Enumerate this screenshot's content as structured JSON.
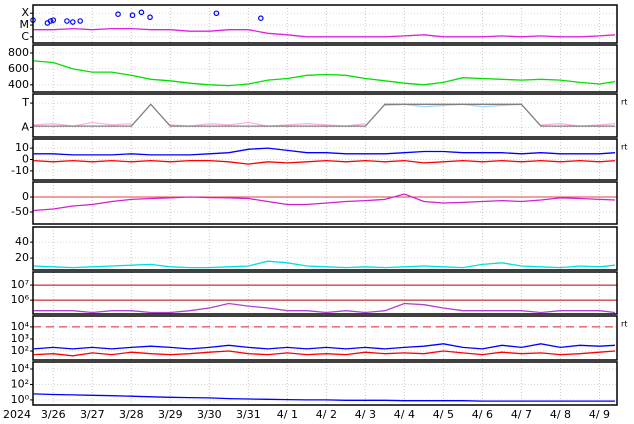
{
  "chart_data": [
    {
      "type": "line",
      "log": true,
      "ylim": [
        3e-07,
        0.0005
      ],
      "yticks": [
        {
          "value": 0.0001,
          "label": "X"
        },
        {
          "value": 1e-05,
          "label": "M"
        },
        {
          "value": 1e-06,
          "label": "C"
        }
      ],
      "x": [
        0.5,
        1,
        1.5,
        2,
        2.5,
        3,
        3.5,
        4,
        4.5,
        5,
        5.5,
        6,
        6.5,
        7,
        7.5,
        8,
        8.5,
        9,
        9.5,
        10,
        10.5,
        11,
        11.5,
        12,
        12.5,
        13,
        13.5,
        14,
        14.5,
        15,
        15.4
      ],
      "series": [
        {
          "color": "#e020e0",
          "values": [
            4e-06,
            4e-06,
            5e-06,
            4e-06,
            5e-06,
            5e-06,
            4e-06,
            4e-06,
            3e-06,
            3e-06,
            4e-06,
            4e-06,
            2e-06,
            1.5e-06,
            1e-06,
            1e-06,
            1e-06,
            1e-06,
            1e-06,
            1.2e-06,
            1.5e-06,
            1e-06,
            1e-06,
            1e-06,
            1.2e-06,
            1e-06,
            1.2e-06,
            1e-06,
            1e-06,
            1.2e-06,
            1.5e-06
          ]
        },
        {
          "type": "scatter",
          "color": "#0000ff",
          "x": [
            0.48,
            0.85,
            0.93,
            1.0,
            1.35,
            1.5,
            1.69,
            2.66,
            3.03,
            3.26,
            3.48,
            5.18,
            6.32
          ],
          "values": [
            2.6e-05,
            1.5e-05,
            2.2e-05,
            2.6e-05,
            2.2e-05,
            1.8e-05,
            2.2e-05,
            8.3e-05,
            6.8e-05,
            0.00012,
            4.6e-05,
            0.0001,
            3.8e-05
          ]
        }
      ]
    },
    {
      "type": "line",
      "ylim": [
        310,
        900
      ],
      "yticks": [
        800,
        600,
        400
      ],
      "x": [
        0.5,
        1,
        1.5,
        2,
        2.5,
        3,
        3.5,
        4,
        4.5,
        5,
        5.5,
        6,
        6.5,
        7,
        7.5,
        8,
        8.5,
        9,
        9.5,
        10,
        10.5,
        11,
        11.5,
        12,
        12.5,
        13,
        13.5,
        14,
        14.5,
        15,
        15.4
      ],
      "series": [
        {
          "color": "#00e000",
          "values": [
            700,
            680,
            600,
            560,
            560,
            520,
            470,
            450,
            420,
            400,
            390,
            410,
            460,
            480,
            520,
            530,
            520,
            480,
            450,
            420,
            400,
            430,
            490,
            480,
            470,
            460,
            470,
            460,
            430,
            410,
            440
          ]
        }
      ]
    },
    {
      "type": "line",
      "ylim": [
        -1.8,
        1.75
      ],
      "flag": "rt",
      "yticks": [
        {
          "value": 1,
          "label": "T"
        },
        {
          "value": -1,
          "label": "A"
        }
      ],
      "x": [
        0.5,
        1,
        1.5,
        2,
        2.5,
        3,
        3.5,
        4,
        4.5,
        5,
        5.5,
        6,
        6.5,
        7,
        7.5,
        8,
        8.5,
        9,
        9.5,
        10,
        10.5,
        11,
        11.5,
        12,
        12.5,
        13,
        13.5,
        14,
        14.5,
        15,
        15.4
      ],
      "series": [
        {
          "color": "#ffb0e8",
          "values": [
            -0.8,
            -0.7,
            -0.9,
            -0.6,
            -0.8,
            -0.7,
            null,
            -0.8,
            -0.9,
            -0.7,
            -0.8,
            -0.6,
            -0.9,
            -0.8,
            -0.7,
            -0.8,
            -0.9,
            -0.7,
            null,
            null,
            null,
            null,
            null,
            null,
            null,
            null,
            -0.8,
            -0.7,
            -0.9,
            -0.8,
            -0.7
          ]
        },
        {
          "color": "#a0d8ff",
          "values": [
            null,
            null,
            null,
            null,
            null,
            null,
            0.8,
            null,
            null,
            null,
            null,
            null,
            null,
            null,
            null,
            null,
            null,
            null,
            0.8,
            0.9,
            0.7,
            0.8,
            0.9,
            0.7,
            0.8,
            0.9,
            null,
            null,
            null,
            null,
            null
          ]
        },
        {
          "color": "#808080",
          "values": [
            -0.9,
            -0.9,
            -0.9,
            -0.9,
            -0.9,
            -0.9,
            0.9,
            -0.9,
            -0.9,
            -0.9,
            -0.9,
            -0.9,
            -0.9,
            -0.9,
            -0.9,
            -0.9,
            -0.9,
            -0.9,
            0.9,
            0.9,
            0.9,
            0.9,
            0.9,
            0.9,
            0.9,
            0.9,
            -0.9,
            -0.9,
            -0.9,
            -0.9,
            -0.9
          ]
        }
      ]
    },
    {
      "type": "line",
      "ylim": [
        -18,
        18
      ],
      "yticks": [
        10,
        0,
        -10
      ],
      "flag": "rt",
      "x": [
        0.5,
        1,
        1.5,
        2,
        2.5,
        3,
        3.5,
        4,
        4.5,
        5,
        5.5,
        6,
        6.5,
        7,
        7.5,
        8,
        8.5,
        9,
        9.5,
        10,
        10.5,
        11,
        11.5,
        12,
        12.5,
        13,
        13.5,
        14,
        14.5,
        15,
        15.4
      ],
      "series": [
        {
          "color": "#ff0000",
          "values": [
            -1,
            -2,
            -1,
            -2,
            -1,
            -2,
            -1,
            -2,
            -1,
            -1,
            -2,
            -4,
            -2,
            -3,
            -2,
            -1,
            -2,
            -1,
            -2,
            -1,
            -3,
            -2,
            -1,
            -2,
            -1,
            -2,
            -1,
            -2,
            -1,
            -2,
            -1
          ]
        },
        {
          "color": "#0000ff",
          "values": [
            5,
            5,
            4,
            4,
            4,
            5,
            4,
            4,
            4,
            5,
            6,
            9,
            10,
            8,
            6,
            6,
            5,
            5,
            5,
            6,
            7,
            7,
            6,
            6,
            6,
            5,
            6,
            5,
            5,
            5,
            6
          ]
        }
      ]
    },
    {
      "type": "line",
      "ylim": [
        -90,
        50
      ],
      "yticks": [
        0,
        -50
      ],
      "ref_lines": [
        0
      ],
      "ref_color": "#e04040",
      "x": [
        0.5,
        1,
        1.5,
        2,
        2.5,
        3,
        3.5,
        4,
        4.5,
        5,
        5.5,
        6,
        6.5,
        7,
        7.5,
        8,
        8.5,
        9,
        9.5,
        10,
        10.5,
        11,
        11.5,
        12,
        12.5,
        13,
        13.5,
        14,
        14.5,
        15,
        15.4
      ],
      "series": [
        {
          "color": "#d020d0",
          "values": [
            -45,
            -40,
            -30,
            -25,
            -15,
            -8,
            -5,
            -3,
            0,
            -2,
            -3,
            -5,
            -15,
            -25,
            -25,
            -20,
            -15,
            -12,
            -8,
            10,
            -15,
            -20,
            -18,
            -15,
            -12,
            -15,
            -10,
            -3,
            -5,
            -8,
            -10
          ]
        }
      ]
    },
    {
      "type": "line",
      "ylim": [
        5,
        59
      ],
      "yticks": [
        40,
        20
      ],
      "x": [
        0.5,
        1,
        1.5,
        2,
        2.5,
        3,
        3.5,
        4,
        4.5,
        5,
        5.5,
        6,
        6.5,
        7,
        7.5,
        8,
        8.5,
        9,
        9.5,
        10,
        10.5,
        11,
        11.5,
        12,
        12.5,
        13,
        13.5,
        14,
        14.5,
        15,
        15.4
      ],
      "series": [
        {
          "color": "#00e0e0",
          "values": [
            10,
            9,
            8,
            9,
            10,
            11,
            12,
            9,
            8,
            8,
            9,
            10,
            16,
            14,
            10,
            9,
            8,
            9,
            8,
            9,
            10,
            9,
            8,
            12,
            14,
            10,
            9,
            8,
            10,
            9,
            11
          ]
        }
      ]
    },
    {
      "type": "line",
      "log": true,
      "ylim": [
        120000,
        74000000
      ],
      "ref_lines": [
        10000000,
        1000000
      ],
      "ref_color": "#c00000",
      "yticks": [
        {
          "value": 10000000,
          "label": "10⁷"
        },
        {
          "value": 1000000,
          "label": "10⁶"
        }
      ],
      "x": [
        0.5,
        1,
        1.5,
        2,
        2.5,
        3,
        3.5,
        4,
        4.5,
        5,
        5.5,
        6,
        6.5,
        7,
        7.5,
        8,
        8.5,
        9,
        9.5,
        10,
        10.5,
        11,
        11.5,
        12,
        12.5,
        13,
        13.5,
        14,
        14.5,
        15,
        15.4
      ],
      "series": [
        {
          "color": "#b040d0",
          "values": [
            200000,
            200000,
            200000,
            150000,
            200000,
            200000,
            150000,
            150000,
            200000,
            300000,
            600000,
            400000,
            300000,
            200000,
            200000,
            150000,
            200000,
            150000,
            200000,
            600000,
            500000,
            300000,
            200000,
            200000,
            200000,
            200000,
            150000,
            200000,
            200000,
            200000,
            150000
          ]
        }
      ]
    },
    {
      "type": "line",
      "log": true,
      "ylim": [
        18,
        80000
      ],
      "ref_lines": [
        10000
      ],
      "ref_color": "#e02020",
      "ref_dashed": true,
      "flag": "rt",
      "yticks": [
        {
          "value": 10000,
          "label": "10⁴"
        },
        {
          "value": 1000,
          "label": "10³"
        },
        {
          "value": 100,
          "label": "10²"
        }
      ],
      "x": [
        0.5,
        1,
        1.5,
        2,
        2.5,
        3,
        3.5,
        4,
        4.5,
        5,
        5.5,
        6,
        6.5,
        7,
        7.5,
        8,
        8.5,
        9,
        9.5,
        10,
        10.5,
        11,
        11.5,
        12,
        12.5,
        13,
        13.5,
        14,
        14.5,
        15,
        15.4
      ],
      "series": [
        {
          "color": "#0000ff",
          "values": [
            150,
            200,
            150,
            200,
            150,
            200,
            250,
            200,
            150,
            200,
            300,
            200,
            150,
            200,
            150,
            200,
            150,
            200,
            150,
            200,
            250,
            400,
            200,
            150,
            300,
            200,
            400,
            200,
            300,
            250,
            300
          ]
        },
        {
          "color": "#ff0000",
          "values": [
            50,
            60,
            40,
            70,
            50,
            80,
            60,
            50,
            60,
            80,
            100,
            60,
            50,
            70,
            50,
            60,
            50,
            80,
            60,
            70,
            60,
            100,
            70,
            50,
            80,
            60,
            70,
            50,
            60,
            80,
            100
          ]
        }
      ]
    },
    {
      "type": "line",
      "log": true,
      "ylim": [
        0.22,
        80000
      ],
      "xlabel": "2024",
      "xlim": [
        0.48,
        15.45
      ],
      "yticks": [
        {
          "value": 10000,
          "label": "10⁴"
        },
        {
          "value": 100,
          "label": "10²"
        },
        {
          "value": 1,
          "label": "10⁰"
        }
      ],
      "xticks": [
        {
          "value": 1,
          "label": "3/26"
        },
        {
          "value": 2,
          "label": "3/27"
        },
        {
          "value": 3,
          "label": "3/28"
        },
        {
          "value": 4,
          "label": "3/29"
        },
        {
          "value": 5,
          "label": "3/30"
        },
        {
          "value": 6,
          "label": "3/31"
        },
        {
          "value": 7,
          "label": "4/ 1"
        },
        {
          "value": 8,
          "label": "4/ 2"
        },
        {
          "value": 9,
          "label": "4/ 3"
        },
        {
          "value": 10,
          "label": "4/ 4"
        },
        {
          "value": 11,
          "label": "4/ 5"
        },
        {
          "value": 12,
          "label": "4/ 6"
        },
        {
          "value": 13,
          "label": "4/ 7"
        },
        {
          "value": 14,
          "label": "4/ 8"
        },
        {
          "value": 15,
          "label": "4/ 9"
        }
      ],
      "x": [
        0.5,
        1,
        1.5,
        2,
        2.5,
        3,
        3.5,
        4,
        4.5,
        5,
        5.5,
        6,
        6.5,
        7,
        7.5,
        8,
        8.5,
        9,
        9.5,
        10,
        10.5,
        11,
        11.5,
        12,
        12.5,
        13,
        13.5,
        14,
        14.5,
        15,
        15.4
      ],
      "series": [
        {
          "color": "#0000ff",
          "values": [
            6,
            5,
            4.5,
            4,
            3.5,
            3,
            2.5,
            2.2,
            2,
            1.8,
            1.5,
            1.3,
            1.2,
            1.1,
            1,
            1,
            0.9,
            0.9,
            0.9,
            0.8,
            0.8,
            0.8,
            0.8,
            0.7,
            0.7,
            0.7,
            0.7,
            0.7,
            0.7,
            0.7,
            0.7
          ]
        }
      ]
    }
  ]
}
